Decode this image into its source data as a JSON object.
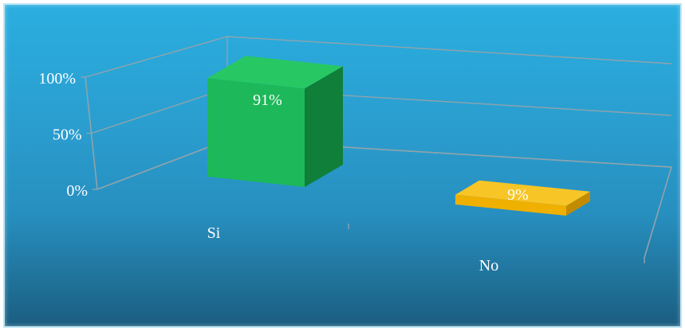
{
  "chart_data": {
    "type": "bar",
    "categories": [
      "Si",
      "No"
    ],
    "values": [
      91,
      9
    ],
    "data_labels": [
      "91%",
      "9%"
    ],
    "yticks": [
      {
        "value": 0,
        "label": "0%"
      },
      {
        "value": 50,
        "label": "50%"
      },
      {
        "value": 100,
        "label": "100%"
      }
    ],
    "ylim": [
      0,
      100
    ],
    "title": "",
    "xlabel": "",
    "ylabel": "",
    "three_d": true,
    "grid": true,
    "legend": "none",
    "colors": {
      "Si": {
        "front": "#1db85a",
        "side": "#0f7f3a",
        "top": "#27c864"
      },
      "No": {
        "front": "#f0b000",
        "side": "#c38c00",
        "top": "#f7c526"
      },
      "background": "#2aa4d8",
      "grid": "#8fa3ac"
    }
  }
}
